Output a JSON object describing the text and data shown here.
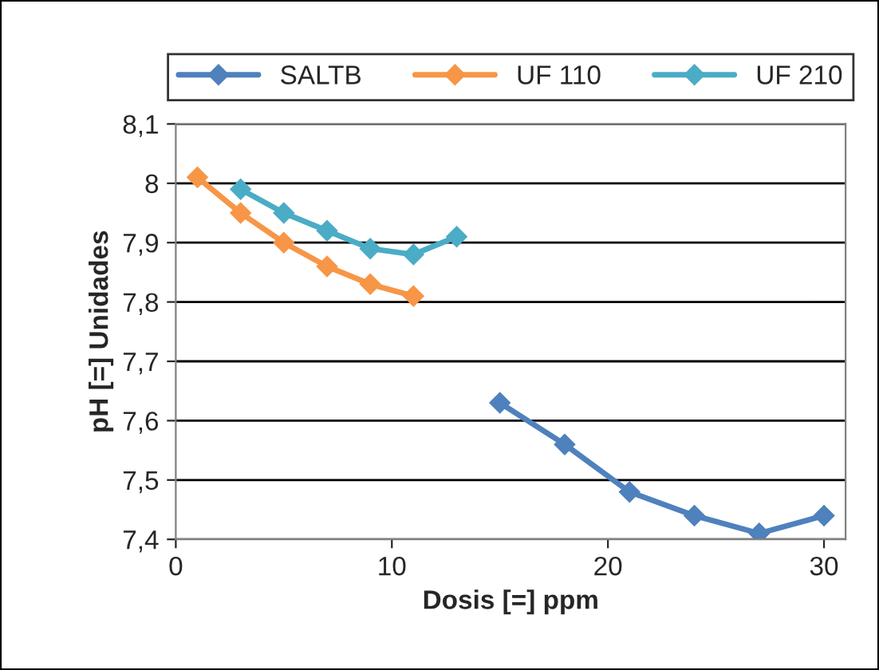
{
  "chart_data": {
    "type": "line",
    "xlabel": "Dosis [=] ppm",
    "ylabel": "pH [=] Unidades",
    "series": [
      {
        "name": "SALTB",
        "color": "#4f81bd",
        "x": [
          15,
          18,
          21,
          24,
          27,
          30
        ],
        "values": [
          7.63,
          7.56,
          7.48,
          7.44,
          7.41,
          7.44
        ]
      },
      {
        "name": "UF 110",
        "color": "#f79646",
        "x": [
          1,
          3,
          5,
          7,
          9,
          11
        ],
        "values": [
          8.01,
          7.95,
          7.9,
          7.86,
          7.83,
          7.81
        ]
      },
      {
        "name": "UF 210",
        "color": "#4bacc6",
        "x": [
          3,
          5,
          7,
          9,
          11,
          13
        ],
        "values": [
          7.99,
          7.95,
          7.92,
          7.89,
          7.88,
          7.91
        ]
      }
    ],
    "xlim": [
      0,
      31
    ],
    "xticks": [
      0,
      10,
      20,
      30
    ],
    "ylim": [
      7.4,
      8.1
    ],
    "yticks": [
      {
        "value": 7.4,
        "label": "7,4"
      },
      {
        "value": 7.5,
        "label": "7,5"
      },
      {
        "value": 7.6,
        "label": "7,6"
      },
      {
        "value": 7.7,
        "label": "7,7"
      },
      {
        "value": 7.8,
        "label": "7,8"
      },
      {
        "value": 7.9,
        "label": "7,9"
      },
      {
        "value": 8,
        "label": "8"
      },
      {
        "value": 8.1,
        "label": "8,1"
      }
    ],
    "grid": "y",
    "legend": "top",
    "marker": "diamond",
    "line_style": "solid"
  }
}
